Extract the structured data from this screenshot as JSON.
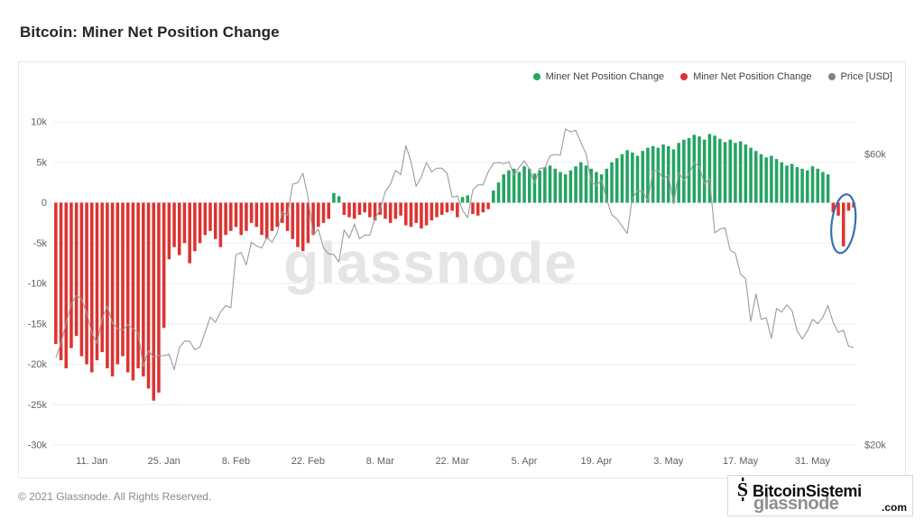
{
  "page": {
    "title": "Bitcoin: Miner Net Position Change",
    "footer": "© 2021 Glassnode. All Rights Reserved."
  },
  "legend": [
    {
      "label": "Miner Net Position Change",
      "color": "#25a462"
    },
    {
      "label": "Miner Net Position Change",
      "color": "#dd3330"
    },
    {
      "label": "Price [USD]",
      "color": "#7f8387"
    }
  ],
  "watermark": "glassnode",
  "brand": {
    "glassnode": "glassnode",
    "name": "BitcoinSistemi",
    "tld": ".com",
    "icon_text": "S"
  },
  "annotation": {
    "name": "highlight-circle",
    "shape": "ellipse",
    "color": "#376fb0",
    "bar_index": 153
  },
  "chart_data": {
    "type": "bar",
    "title": "Bitcoin: Miner Net Position Change",
    "start_date": "2021-01-04",
    "values_unit": "thousands",
    "grid": true,
    "legend_position": "top-right",
    "x_ticks": [
      {
        "label": "11. Jan",
        "index": 7
      },
      {
        "label": "25. Jan",
        "index": 21
      },
      {
        "label": "8. Feb",
        "index": 35
      },
      {
        "label": "22. Feb",
        "index": 49
      },
      {
        "label": "8. Mar",
        "index": 63
      },
      {
        "label": "22. Mar",
        "index": 77
      },
      {
        "label": "5. Apr",
        "index": 91
      },
      {
        "label": "19. Apr",
        "index": 105
      },
      {
        "label": "3. May",
        "index": 119
      },
      {
        "label": "17. May",
        "index": 133
      },
      {
        "label": "31. May",
        "index": 147
      }
    ],
    "y_left": {
      "range": [
        -30,
        10
      ],
      "ticks": [
        {
          "label": "10k",
          "value": 10
        },
        {
          "label": "5k",
          "value": 5
        },
        {
          "label": "0",
          "value": 0
        },
        {
          "label": "-5k",
          "value": -5
        },
        {
          "label": "-10k",
          "value": -10
        },
        {
          "label": "-15k",
          "value": -15
        },
        {
          "label": "-20k",
          "value": -20
        },
        {
          "label": "-25k",
          "value": -25
        },
        {
          "label": "-30k",
          "value": -30
        }
      ]
    },
    "y_right": {
      "range": [
        20,
        60
      ],
      "ticks": [
        {
          "label": "$60k",
          "value": 60
        },
        {
          "label": "$20k",
          "value": 20
        }
      ]
    },
    "series": [
      {
        "name": "Miner Net Position Change",
        "type": "bar",
        "unit": "BTC (thousands)",
        "positive_color": "#25a462",
        "negative_color": "#dd3330",
        "values": [
          -17.5,
          -19.5,
          -20.5,
          -18,
          -16.5,
          -19,
          -20,
          -21,
          -19.5,
          -18.5,
          -20.5,
          -21.5,
          -20,
          -19,
          -21,
          -22,
          -20.5,
          -21.5,
          -23,
          -24.5,
          -23.5,
          -15.5,
          -7,
          -5.5,
          -6.5,
          -5,
          -7.5,
          -6,
          -5,
          -4,
          -3.5,
          -4.5,
          -5.5,
          -4,
          -3.5,
          -3,
          -4,
          -3.5,
          -2.5,
          -3,
          -4,
          -4.5,
          -3.5,
          -3,
          -2.5,
          -3.5,
          -4.5,
          -5.5,
          -6,
          -5,
          -4,
          -3,
          -2.5,
          -2,
          1.2,
          0.8,
          -1.5,
          -1.8,
          -2,
          -1.5,
          -1.2,
          -1.8,
          -2.2,
          -1.5,
          -2,
          -2.5,
          -2,
          -1.6,
          -2.8,
          -3,
          -2.5,
          -3.2,
          -2.8,
          -2.2,
          -1.8,
          -1.5,
          -1.2,
          -1,
          -1.8,
          0.7,
          0.9,
          -1.4,
          -1.6,
          -1.2,
          -0.8,
          1.5,
          2.5,
          3.5,
          4,
          4.2,
          3.8,
          4.5,
          4.2,
          3.6,
          4,
          4.4,
          4.6,
          4.2,
          3.8,
          3.5,
          4,
          4.5,
          5,
          4.6,
          4.2,
          3.8,
          3.5,
          4.2,
          5,
          5.5,
          6,
          6.5,
          6.2,
          5.8,
          6.4,
          6.8,
          7,
          6.8,
          7.2,
          7,
          6.6,
          7.4,
          7.8,
          8,
          8.4,
          8.2,
          7.8,
          8.5,
          8.3,
          7.9,
          7.5,
          7.8,
          7.4,
          7.6,
          7.2,
          6.8,
          6.4,
          6,
          5.6,
          5.8,
          5.4,
          5,
          4.6,
          4.8,
          4.4,
          4.2,
          4,
          4.5,
          4.2,
          3.8,
          3.5,
          -1.2,
          -1.6,
          -5.4,
          -1,
          -0.6
        ]
      },
      {
        "name": "Price [USD]",
        "type": "line",
        "unit": "USD (thousands)",
        "color": "#9b9b9b",
        "values": [
          32,
          34,
          36.8,
          39.4,
          40.6,
          40.1,
          38.2,
          35.4,
          34,
          37.4,
          39.1,
          36.8,
          36,
          35.8,
          36.6,
          36,
          35.5,
          30.8,
          33,
          32.1,
          32.3,
          32.3,
          32.5,
          30.4,
          33.4,
          34.3,
          34.3,
          33.1,
          33.5,
          35.5,
          37.6,
          36.9,
          38.3,
          39.2,
          38.9,
          46.2,
          46.5,
          44.8,
          47.9,
          47.4,
          47.1,
          48.6,
          47.9,
          49.2,
          52.1,
          51.6,
          55.9,
          56.1,
          57.4,
          54.1,
          48.9,
          49.7,
          47.1,
          46.3,
          46.2,
          45.2,
          49.6,
          48.5,
          50.4,
          48.4,
          48.9,
          48.9,
          51.2,
          52.4,
          54.9,
          55.9,
          57.8,
          57.2,
          61.2,
          59,
          55.6,
          56.9,
          58.9,
          57.6,
          58.1,
          58.1,
          57.4,
          54.1,
          54.3,
          52.3,
          51.3,
          55.1,
          55.8,
          55.8,
          57.6,
          58.8,
          58.9,
          58.7,
          59,
          57.1,
          58.2,
          59.1,
          58,
          56,
          58.1,
          58.1,
          59.8,
          60,
          59.9,
          63.5,
          63.1,
          63.3,
          61.6,
          60.1,
          56.2,
          55.7,
          56.5,
          53.8,
          51.7,
          51.1,
          50.1,
          49.1,
          54,
          55,
          54.9,
          53.6,
          57.7,
          57.8,
          56.6,
          57.2,
          53.2,
          57.5,
          56.4,
          57.3,
          58.9,
          58.3,
          55.9,
          56.7,
          49.2,
          49.7,
          49.9,
          46.8,
          46.4,
          43.5,
          42.9,
          37,
          40.8,
          37.3,
          37.5,
          34.7,
          38.8,
          38.3,
          39.3,
          38.5,
          35.7,
          34.6,
          35.7,
          37.3,
          36.7,
          37.6,
          39.2,
          36.9,
          35.5,
          35.8,
          33.6,
          33.4
        ]
      }
    ]
  }
}
